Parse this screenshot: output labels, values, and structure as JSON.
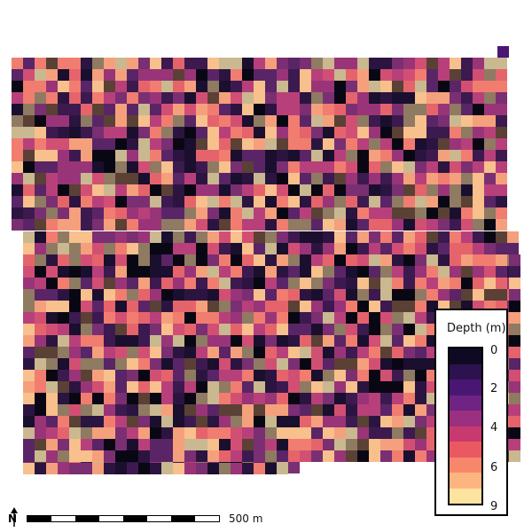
{
  "map": {
    "colormap": "magma",
    "colors": {
      "background": "#ffffff",
      "border": "#000000"
    }
  },
  "legend": {
    "title": "Depth (m)",
    "ticks": [
      "0",
      "2",
      "4",
      "6",
      "9"
    ],
    "colors": [
      "#0f0a23",
      "#2d1250",
      "#4a1673",
      "#6f2382",
      "#9b2f80",
      "#c83a6f",
      "#ea5962",
      "#f7876a",
      "#fdb57f",
      "#fde3a0"
    ]
  },
  "scalebar": {
    "label": "500 m",
    "segments": 8
  },
  "north": {
    "label": "N",
    "icon": "north-arrow-icon"
  }
}
